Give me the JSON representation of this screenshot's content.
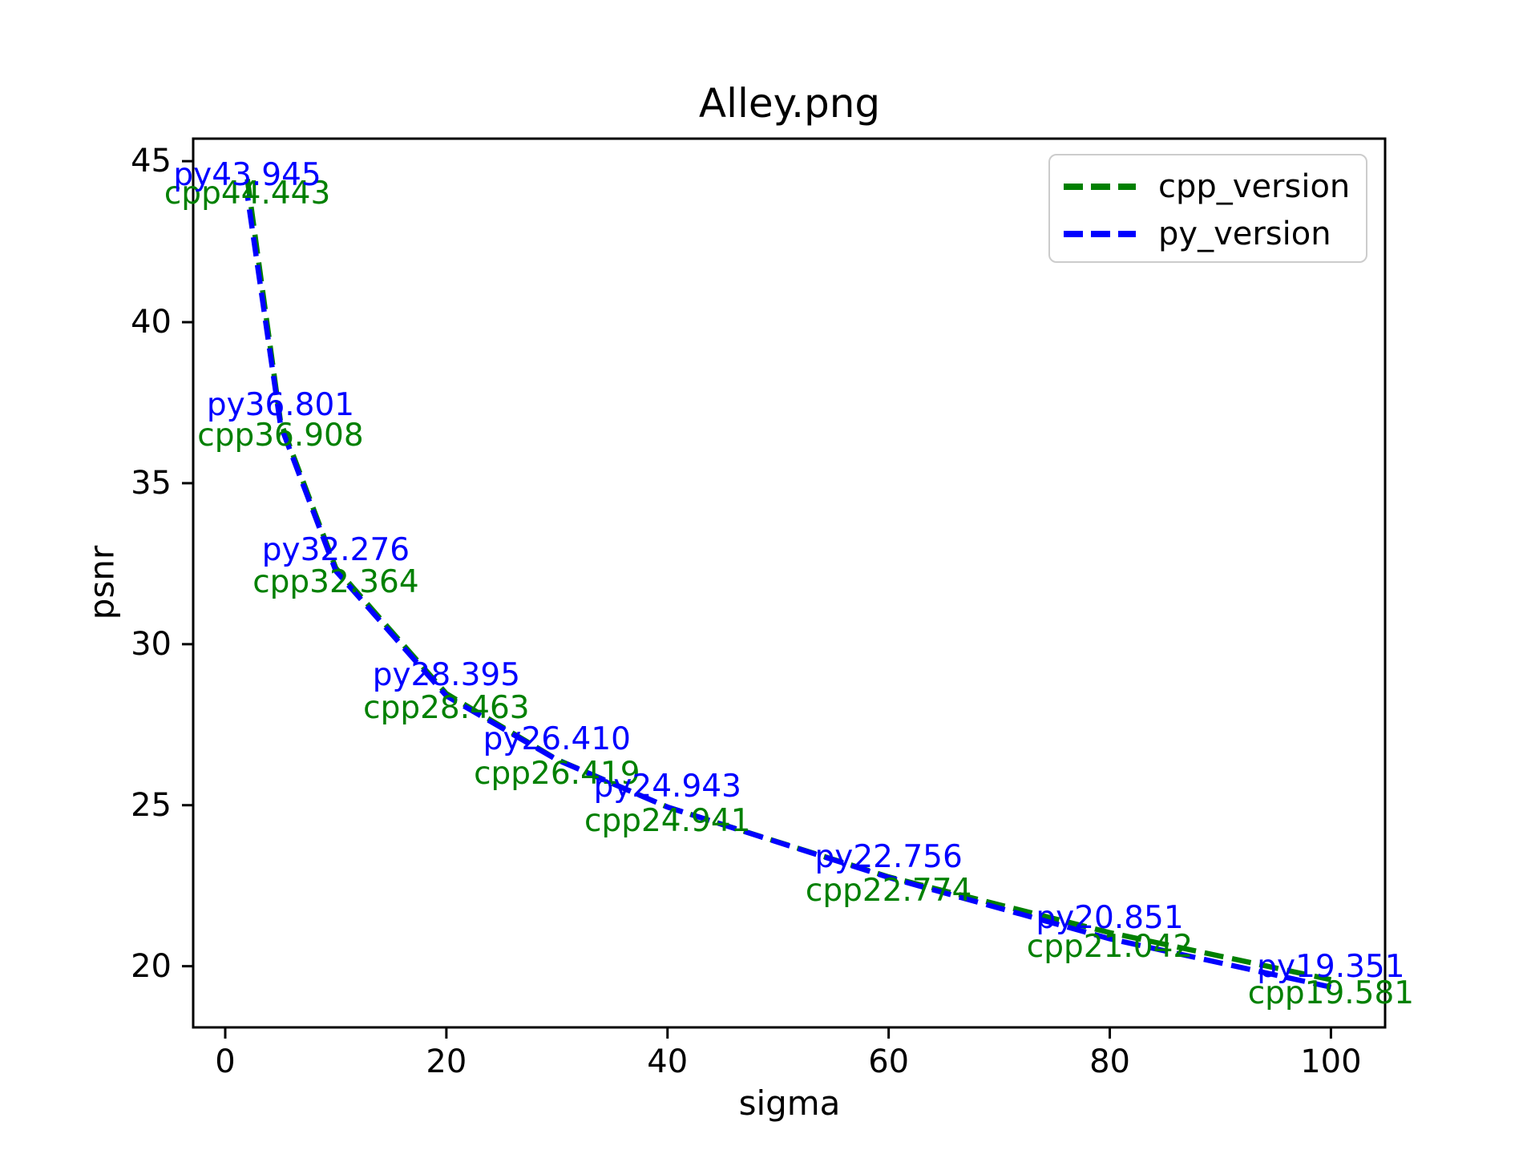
{
  "chart_data": {
    "type": "line",
    "title": "Alley.png",
    "xlabel": "sigma",
    "ylabel": "psnr",
    "x": [
      2,
      5,
      10,
      20,
      30,
      40,
      60,
      80,
      100
    ],
    "series": [
      {
        "name": "cpp_version",
        "color": "#008000",
        "linestyle": "dashed",
        "values": [
          44.443,
          36.908,
          32.364,
          28.463,
          26.419,
          24.941,
          22.774,
          21.042,
          19.581
        ],
        "point_labels": [
          "cpp44.443",
          "cpp36.908",
          "cpp32.364",
          "cpp28.463",
          "cpp26.419",
          "cpp24.941",
          "cpp22.774",
          "cpp21.042",
          "cpp19.581"
        ],
        "label_placement": "below"
      },
      {
        "name": "py_version",
        "color": "#0000ff",
        "linestyle": "dashed",
        "values": [
          43.945,
          36.801,
          32.276,
          28.395,
          26.41,
          24.943,
          22.756,
          20.851,
          19.351
        ],
        "point_labels": [
          "py43.945",
          "py36.801",
          "py32.276",
          "py28.395",
          "py26.410",
          "py24.943",
          "py22.756",
          "py20.851",
          "py19.351"
        ],
        "label_placement": "above"
      }
    ],
    "xlim": [
      -2.9,
      104.9
    ],
    "ylim": [
      18.1,
      45.7
    ],
    "xticks": [
      0,
      20,
      40,
      60,
      80,
      100
    ],
    "xtick_labels": [
      "0",
      "20",
      "40",
      "60",
      "80",
      "100"
    ],
    "yticks": [
      20,
      25,
      30,
      35,
      40,
      45
    ],
    "ytick_labels": [
      "20",
      "25",
      "30",
      "35",
      "40",
      "45"
    ],
    "grid": false,
    "legend_position": "upper right",
    "axis_color": "#000000",
    "background_color": "#ffffff"
  }
}
